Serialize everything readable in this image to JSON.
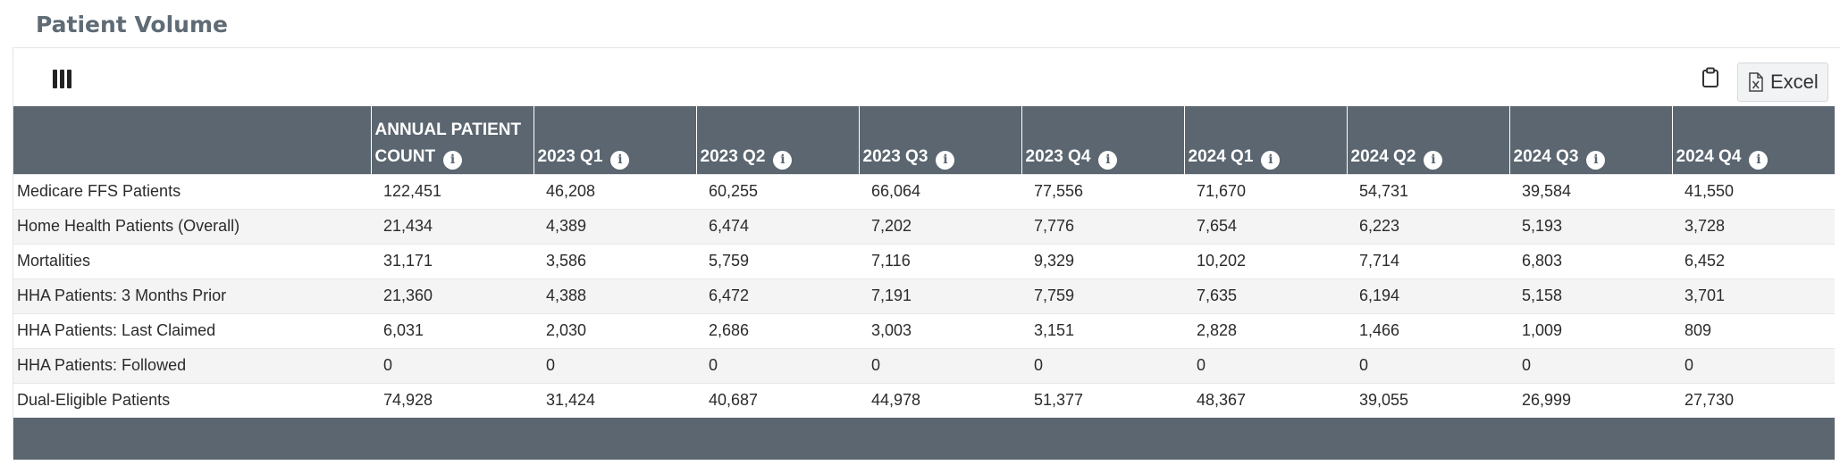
{
  "page": {
    "title": "Patient Volume"
  },
  "toolbar": {
    "columns_icon": "columns-icon",
    "clipboard_icon": "clipboard-icon",
    "excel_icon": "excel-file-icon",
    "excel_label": "Excel"
  },
  "table": {
    "columns": [
      {
        "label": ""
      },
      {
        "label": "ANNUAL PATIENT COUNT"
      },
      {
        "label": "2023 Q1"
      },
      {
        "label": "2023 Q2"
      },
      {
        "label": "2023 Q3"
      },
      {
        "label": "2023 Q4"
      },
      {
        "label": "2024 Q1"
      },
      {
        "label": "2024 Q2"
      },
      {
        "label": "2024 Q3"
      },
      {
        "label": "2024 Q4"
      }
    ],
    "info_glyph": "i",
    "rows": [
      {
        "label": "Medicare FFS Patients",
        "values": [
          "122,451",
          "46,208",
          "60,255",
          "66,064",
          "77,556",
          "71,670",
          "54,731",
          "39,584",
          "41,550"
        ]
      },
      {
        "label": "Home Health Patients (Overall)",
        "values": [
          "21,434",
          "4,389",
          "6,474",
          "7,202",
          "7,776",
          "7,654",
          "6,223",
          "5,193",
          "3,728"
        ]
      },
      {
        "label": "Mortalities",
        "values": [
          "31,171",
          "3,586",
          "5,759",
          "7,116",
          "9,329",
          "10,202",
          "7,714",
          "6,803",
          "6,452"
        ]
      },
      {
        "label": "HHA Patients: 3 Months Prior",
        "values": [
          "21,360",
          "4,388",
          "6,472",
          "7,191",
          "7,759",
          "7,635",
          "6,194",
          "5,158",
          "3,701"
        ]
      },
      {
        "label": "HHA Patients: Last Claimed",
        "values": [
          "6,031",
          "2,030",
          "2,686",
          "3,003",
          "3,151",
          "2,828",
          "1,466",
          "1,009",
          "809"
        ]
      },
      {
        "label": "HHA Patients: Followed",
        "values": [
          "0",
          "0",
          "0",
          "0",
          "0",
          "0",
          "0",
          "0",
          "0"
        ]
      },
      {
        "label": "Dual-Eligible Patients",
        "values": [
          "74,928",
          "31,424",
          "40,687",
          "44,978",
          "51,377",
          "48,367",
          "39,055",
          "26,999",
          "27,730"
        ]
      }
    ]
  },
  "colors": {
    "header_bg": "#5b6670",
    "title_text": "#5f6b75",
    "alt_row_bg": "#f4f4f4"
  }
}
